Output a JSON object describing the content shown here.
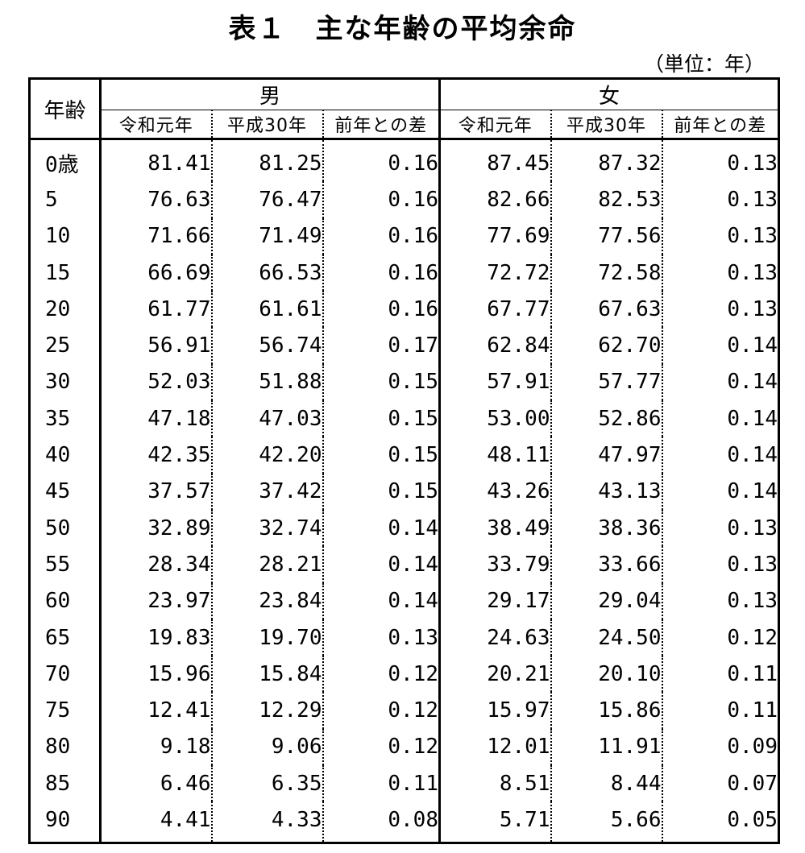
{
  "title": "表１　主な年齢の平均余命",
  "unit": "（単位：年）",
  "headers": {
    "age": "年齢",
    "male": "男",
    "female": "女",
    "cols": [
      "令和元年",
      "平成30年",
      "前年との差"
    ]
  },
  "rows": [
    {
      "age": "0歳",
      "m": [
        "81.41",
        "81.25",
        "0.16"
      ],
      "f": [
        "87.45",
        "87.32",
        "0.13"
      ]
    },
    {
      "age": "5",
      "m": [
        "76.63",
        "76.47",
        "0.16"
      ],
      "f": [
        "82.66",
        "82.53",
        "0.13"
      ]
    },
    {
      "age": "10",
      "m": [
        "71.66",
        "71.49",
        "0.16"
      ],
      "f": [
        "77.69",
        "77.56",
        "0.13"
      ]
    },
    {
      "age": "15",
      "m": [
        "66.69",
        "66.53",
        "0.16"
      ],
      "f": [
        "72.72",
        "72.58",
        "0.13"
      ]
    },
    {
      "age": "20",
      "m": [
        "61.77",
        "61.61",
        "0.16"
      ],
      "f": [
        "67.77",
        "67.63",
        "0.13"
      ]
    },
    {
      "age": "25",
      "m": [
        "56.91",
        "56.74",
        "0.17"
      ],
      "f": [
        "62.84",
        "62.70",
        "0.14"
      ]
    },
    {
      "age": "30",
      "m": [
        "52.03",
        "51.88",
        "0.15"
      ],
      "f": [
        "57.91",
        "57.77",
        "0.14"
      ]
    },
    {
      "age": "35",
      "m": [
        "47.18",
        "47.03",
        "0.15"
      ],
      "f": [
        "53.00",
        "52.86",
        "0.14"
      ]
    },
    {
      "age": "40",
      "m": [
        "42.35",
        "42.20",
        "0.15"
      ],
      "f": [
        "48.11",
        "47.97",
        "0.14"
      ]
    },
    {
      "age": "45",
      "m": [
        "37.57",
        "37.42",
        "0.15"
      ],
      "f": [
        "43.26",
        "43.13",
        "0.14"
      ]
    },
    {
      "age": "50",
      "m": [
        "32.89",
        "32.74",
        "0.14"
      ],
      "f": [
        "38.49",
        "38.36",
        "0.13"
      ]
    },
    {
      "age": "55",
      "m": [
        "28.34",
        "28.21",
        "0.14"
      ],
      "f": [
        "33.79",
        "33.66",
        "0.13"
      ]
    },
    {
      "age": "60",
      "m": [
        "23.97",
        "23.84",
        "0.14"
      ],
      "f": [
        "29.17",
        "29.04",
        "0.13"
      ]
    },
    {
      "age": "65",
      "m": [
        "19.83",
        "19.70",
        "0.13"
      ],
      "f": [
        "24.63",
        "24.50",
        "0.12"
      ]
    },
    {
      "age": "70",
      "m": [
        "15.96",
        "15.84",
        "0.12"
      ],
      "f": [
        "20.21",
        "20.10",
        "0.11"
      ]
    },
    {
      "age": "75",
      "m": [
        "12.41",
        "12.29",
        "0.12"
      ],
      "f": [
        "15.97",
        "15.86",
        "0.11"
      ]
    },
    {
      "age": "80",
      "m": [
        "9.18",
        "9.06",
        "0.12"
      ],
      "f": [
        "12.01",
        "11.91",
        "0.09"
      ]
    },
    {
      "age": "85",
      "m": [
        "6.46",
        "6.35",
        "0.11"
      ],
      "f": [
        "8.51",
        "8.44",
        "0.07"
      ]
    },
    {
      "age": "90",
      "m": [
        "4.41",
        "4.33",
        "0.08"
      ],
      "f": [
        "5.71",
        "5.66",
        "0.05"
      ]
    }
  ]
}
